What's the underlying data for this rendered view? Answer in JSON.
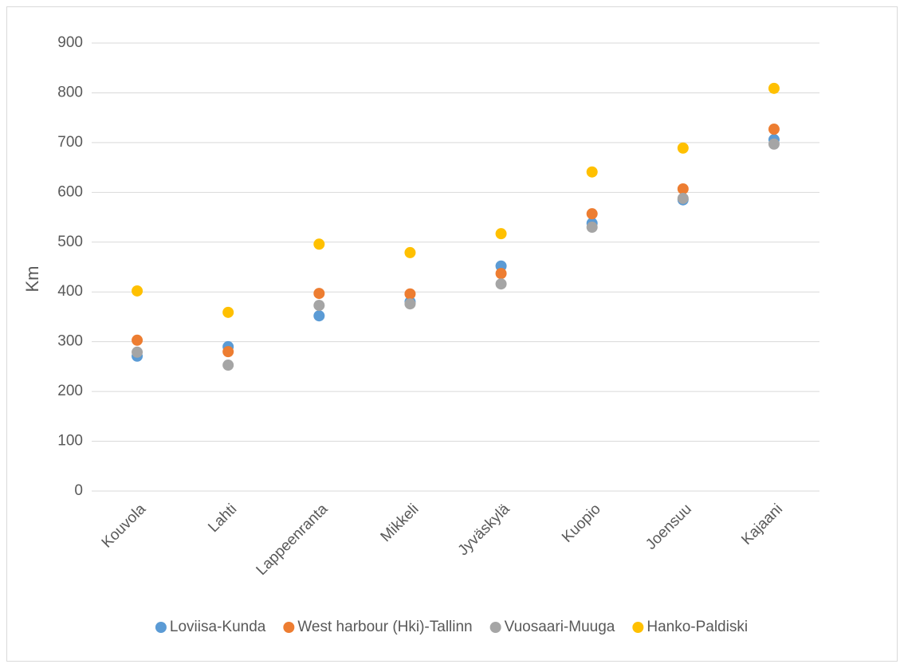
{
  "chart_data": {
    "type": "scatter",
    "y_label": "Km",
    "categories": [
      "Kouvola",
      "Lahti",
      "Lappeenranta",
      "Mikkeli",
      "Jyväskylä",
      "Kuopio",
      "Joensuu",
      "Kajaani"
    ],
    "series": [
      {
        "name": "Loviisa-Kunda",
        "color": "#5b9bd5",
        "values": [
          271,
          290,
          352,
          380,
          452,
          538,
          585,
          706
        ]
      },
      {
        "name": "West harbour (Hki)-Tallinn",
        "color": "#ed7d31",
        "values": [
          303,
          280,
          397,
          396,
          437,
          557,
          607,
          727
        ]
      },
      {
        "name": "Vuosaari-Muuga",
        "color": "#a5a5a5",
        "values": [
          279,
          253,
          373,
          376,
          416,
          530,
          588,
          697
        ]
      },
      {
        "name": "Hanko-Paldiski",
        "color": "#ffc000",
        "values": [
          402,
          359,
          496,
          479,
          517,
          641,
          689,
          809
        ]
      }
    ],
    "ylim": [
      0,
      900
    ],
    "yticks": [
      0,
      100,
      200,
      300,
      400,
      500,
      600,
      700,
      800,
      900
    ],
    "grid": true,
    "legend": "bottom"
  }
}
